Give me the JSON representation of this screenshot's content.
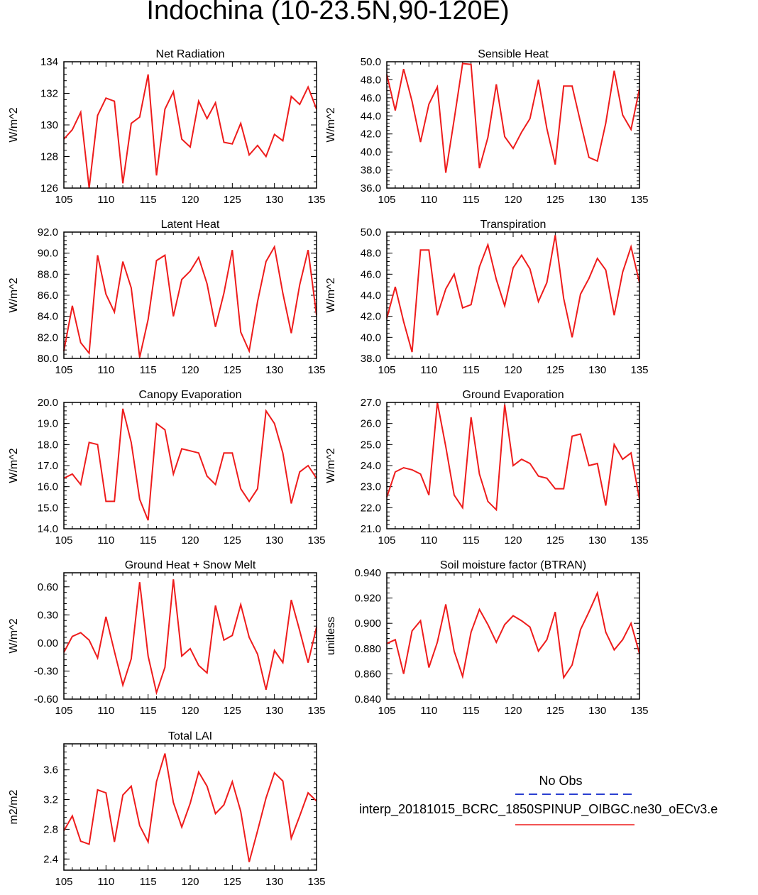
{
  "page": {
    "title": "Indochina (10-23.5N,90-120E)"
  },
  "legend": {
    "obs_label": "No Obs",
    "model_label": "interp_20181015_BCRC_1850SPINUP_OIBGC.ne30_oECv3.e",
    "obs_color": "#2a3fd0",
    "model_color": "#ee1c1c"
  },
  "chart_data": [
    {
      "type": "line",
      "title": "Net Radiation",
      "ylabel": "W/m^2",
      "xlim": [
        105,
        135
      ],
      "ylim": [
        126,
        134
      ],
      "xticks": [
        "105",
        "110",
        "115",
        "120",
        "125",
        "130",
        "135"
      ],
      "yticks": [
        "126",
        "128",
        "130",
        "132",
        "134"
      ],
      "x": [
        105,
        106,
        107,
        108,
        109,
        110,
        111,
        112,
        113,
        114,
        115,
        116,
        117,
        118,
        119,
        120,
        121,
        122,
        123,
        124,
        125,
        126,
        127,
        128,
        129,
        130,
        131,
        132,
        133,
        134,
        135
      ],
      "series": [
        {
          "values": [
            129.1,
            129.7,
            130.8,
            126.0,
            130.6,
            131.7,
            131.5,
            126.3,
            130.1,
            130.5,
            133.2,
            126.8,
            131.0,
            132.1,
            129.1,
            128.6,
            131.5,
            130.4,
            131.4,
            128.9,
            128.8,
            130.1,
            128.1,
            128.7,
            128.0,
            129.4,
            129.0,
            131.8,
            131.3,
            132.4,
            131.0
          ],
          "color": "#ee1c1c"
        }
      ]
    },
    {
      "type": "line",
      "title": "Sensible Heat",
      "ylabel": "W/m^2",
      "xlim": [
        105,
        135
      ],
      "ylim": [
        36,
        50
      ],
      "xticks": [
        "105",
        "110",
        "115",
        "120",
        "125",
        "130",
        "135"
      ],
      "yticks": [
        "36.0",
        "38.0",
        "40.0",
        "42.0",
        "44.0",
        "46.0",
        "48.0",
        "50.0"
      ],
      "x": [
        105,
        106,
        107,
        108,
        109,
        110,
        111,
        112,
        113,
        114,
        115,
        116,
        117,
        118,
        119,
        120,
        121,
        122,
        123,
        124,
        125,
        126,
        127,
        128,
        129,
        130,
        131,
        132,
        133,
        134,
        135
      ],
      "series": [
        {
          "values": [
            48.6,
            44.6,
            49.2,
            45.6,
            41.1,
            45.3,
            47.2,
            37.7,
            43.6,
            49.8,
            49.7,
            38.2,
            41.6,
            47.5,
            41.7,
            40.4,
            42.2,
            43.7,
            48.0,
            42.6,
            38.6,
            47.3,
            47.3,
            43.3,
            39.4,
            39.0,
            43.2,
            49.0,
            44.1,
            42.5,
            47.0
          ],
          "color": "#ee1c1c"
        }
      ]
    },
    {
      "type": "line",
      "title": "Latent Heat",
      "ylabel": "W/m^2",
      "xlim": [
        105,
        135
      ],
      "ylim": [
        80,
        92
      ],
      "xticks": [
        "105",
        "110",
        "115",
        "120",
        "125",
        "130",
        "135"
      ],
      "yticks": [
        "80.0",
        "82.0",
        "84.0",
        "86.0",
        "88.0",
        "90.0",
        "92.0"
      ],
      "x": [
        105,
        106,
        107,
        108,
        109,
        110,
        111,
        112,
        113,
        114,
        115,
        116,
        117,
        118,
        119,
        120,
        121,
        122,
        123,
        124,
        125,
        126,
        127,
        128,
        129,
        130,
        131,
        132,
        133,
        134,
        135
      ],
      "series": [
        {
          "values": [
            80.7,
            85.0,
            81.5,
            80.5,
            89.8,
            86.1,
            84.4,
            89.2,
            86.7,
            80.1,
            83.7,
            89.3,
            89.8,
            84.0,
            87.5,
            88.3,
            89.6,
            87.1,
            83.0,
            86.2,
            90.3,
            82.5,
            80.7,
            85.4,
            89.2,
            90.6,
            86.2,
            82.4,
            87.0,
            90.3,
            84.1
          ],
          "color": "#ee1c1c"
        }
      ]
    },
    {
      "type": "line",
      "title": "Transpiration",
      "ylabel": "W/m^2",
      "xlim": [
        105,
        135
      ],
      "ylim": [
        38,
        50
      ],
      "xticks": [
        "105",
        "110",
        "115",
        "120",
        "125",
        "130",
        "135"
      ],
      "yticks": [
        "38.0",
        "40.0",
        "42.0",
        "44.0",
        "46.0",
        "48.0",
        "50.0"
      ],
      "x": [
        105,
        106,
        107,
        108,
        109,
        110,
        111,
        112,
        113,
        114,
        115,
        116,
        117,
        118,
        119,
        120,
        121,
        122,
        123,
        124,
        125,
        126,
        127,
        128,
        129,
        130,
        131,
        132,
        133,
        134,
        135
      ],
      "series": [
        {
          "values": [
            41.8,
            44.8,
            41.5,
            38.6,
            48.3,
            48.3,
            42.1,
            44.6,
            46.0,
            42.8,
            43.1,
            46.7,
            48.8,
            45.5,
            43.0,
            46.6,
            47.8,
            46.5,
            43.4,
            45.2,
            49.7,
            43.7,
            40.0,
            44.1,
            45.6,
            47.5,
            46.4,
            42.1,
            46.2,
            48.6,
            45.2
          ],
          "color": "#ee1c1c"
        }
      ]
    },
    {
      "type": "line",
      "title": "Canopy Evaporation",
      "ylabel": "W/m^2",
      "xlim": [
        105,
        135
      ],
      "ylim": [
        14,
        20
      ],
      "xticks": [
        "105",
        "110",
        "115",
        "120",
        "125",
        "130",
        "135"
      ],
      "yticks": [
        "14.0",
        "15.0",
        "16.0",
        "17.0",
        "18.0",
        "19.0",
        "20.0"
      ],
      "x": [
        105,
        106,
        107,
        108,
        109,
        110,
        111,
        112,
        113,
        114,
        115,
        116,
        117,
        118,
        119,
        120,
        121,
        122,
        123,
        124,
        125,
        126,
        127,
        128,
        129,
        130,
        131,
        132,
        133,
        134,
        135
      ],
      "series": [
        {
          "values": [
            16.4,
            16.6,
            16.1,
            18.1,
            18.0,
            15.3,
            15.3,
            19.7,
            18.1,
            15.4,
            14.4,
            19.0,
            18.7,
            16.6,
            17.8,
            17.7,
            17.6,
            16.5,
            16.1,
            17.6,
            17.6,
            15.9,
            15.3,
            15.9,
            19.6,
            19.0,
            17.6,
            15.2,
            16.7,
            17.0,
            16.4
          ],
          "color": "#ee1c1c"
        }
      ]
    },
    {
      "type": "line",
      "title": "Ground Evaporation",
      "ylabel": "W/m^2",
      "xlim": [
        105,
        135
      ],
      "ylim": [
        21,
        27
      ],
      "xticks": [
        "105",
        "110",
        "115",
        "120",
        "125",
        "130",
        "135"
      ],
      "yticks": [
        "21.0",
        "22.0",
        "23.0",
        "24.0",
        "25.0",
        "26.0",
        "27.0"
      ],
      "x": [
        105,
        106,
        107,
        108,
        109,
        110,
        111,
        112,
        113,
        114,
        115,
        116,
        117,
        118,
        119,
        120,
        121,
        122,
        123,
        124,
        125,
        126,
        127,
        128,
        129,
        130,
        131,
        132,
        133,
        134,
        135
      ],
      "series": [
        {
          "values": [
            22.5,
            23.7,
            23.9,
            23.8,
            23.6,
            22.6,
            27.0,
            24.9,
            22.6,
            22.0,
            26.3,
            23.6,
            22.3,
            21.9,
            26.9,
            24.0,
            24.3,
            24.1,
            23.5,
            23.4,
            22.9,
            22.9,
            25.4,
            25.5,
            24.0,
            24.1,
            22.1,
            25.0,
            24.3,
            24.6,
            22.4
          ],
          "color": "#ee1c1c"
        }
      ]
    },
    {
      "type": "line",
      "title": "Ground Heat + Snow Melt",
      "ylabel": "W/m^2",
      "xlim": [
        105,
        135
      ],
      "ylim": [
        -0.6,
        0.75
      ],
      "xticks": [
        "105",
        "110",
        "115",
        "120",
        "125",
        "130",
        "135"
      ],
      "yticks": [
        "-0.60",
        "-0.30",
        "0.00",
        "0.30",
        "0.60"
      ],
      "x": [
        105,
        106,
        107,
        108,
        109,
        110,
        111,
        112,
        113,
        114,
        115,
        116,
        117,
        118,
        119,
        120,
        121,
        122,
        123,
        124,
        125,
        126,
        127,
        128,
        129,
        130,
        131,
        132,
        133,
        134,
        135
      ],
      "series": [
        {
          "values": [
            -0.1,
            0.07,
            0.11,
            0.03,
            -0.16,
            0.28,
            -0.09,
            -0.45,
            -0.17,
            0.65,
            -0.14,
            -0.53,
            -0.26,
            0.68,
            -0.14,
            -0.06,
            -0.24,
            -0.32,
            0.4,
            0.03,
            0.08,
            0.41,
            0.06,
            -0.12,
            -0.5,
            -0.08,
            -0.21,
            0.46,
            0.13,
            -0.21,
            0.17
          ],
          "color": "#ee1c1c"
        }
      ]
    },
    {
      "type": "line",
      "title": "Soil moisture factor (BTRAN)",
      "ylabel": "unitless",
      "xlim": [
        105,
        135
      ],
      "ylim": [
        0.84,
        0.94
      ],
      "xticks": [
        "105",
        "110",
        "115",
        "120",
        "125",
        "130",
        "135"
      ],
      "yticks": [
        "0.840",
        "0.860",
        "0.880",
        "0.900",
        "0.920",
        "0.940"
      ],
      "x": [
        105,
        106,
        107,
        108,
        109,
        110,
        111,
        112,
        113,
        114,
        115,
        116,
        117,
        118,
        119,
        120,
        121,
        122,
        123,
        124,
        125,
        126,
        127,
        128,
        129,
        130,
        131,
        132,
        133,
        134,
        135
      ],
      "series": [
        {
          "values": [
            0.884,
            0.887,
            0.86,
            0.894,
            0.902,
            0.865,
            0.885,
            0.915,
            0.878,
            0.858,
            0.893,
            0.911,
            0.899,
            0.885,
            0.899,
            0.906,
            0.902,
            0.897,
            0.878,
            0.887,
            0.909,
            0.857,
            0.867,
            0.895,
            0.909,
            0.924,
            0.893,
            0.879,
            0.887,
            0.9,
            0.876
          ],
          "color": "#ee1c1c"
        }
      ]
    },
    {
      "type": "line",
      "title": "Total LAI",
      "ylabel": "m2/m2",
      "xlim": [
        105,
        135
      ],
      "ylim": [
        2.25,
        3.95
      ],
      "xticks": [
        "105",
        "110",
        "115",
        "120",
        "125",
        "130",
        "135"
      ],
      "yticks": [
        "2.4",
        "2.8",
        "3.2",
        "3.6"
      ],
      "x": [
        105,
        106,
        107,
        108,
        109,
        110,
        111,
        112,
        113,
        114,
        115,
        116,
        117,
        118,
        119,
        120,
        121,
        122,
        123,
        124,
        125,
        126,
        127,
        128,
        129,
        130,
        131,
        132,
        133,
        134,
        135
      ],
      "series": [
        {
          "values": [
            2.78,
            2.98,
            2.64,
            2.6,
            3.33,
            3.29,
            2.63,
            3.26,
            3.38,
            2.85,
            2.63,
            3.44,
            3.82,
            3.16,
            2.83,
            3.15,
            3.57,
            3.38,
            3.01,
            3.13,
            3.44,
            3.04,
            2.36,
            2.78,
            3.22,
            3.56,
            3.45,
            2.68,
            2.98,
            3.29,
            3.18
          ],
          "color": "#ee1c1c"
        }
      ]
    }
  ]
}
